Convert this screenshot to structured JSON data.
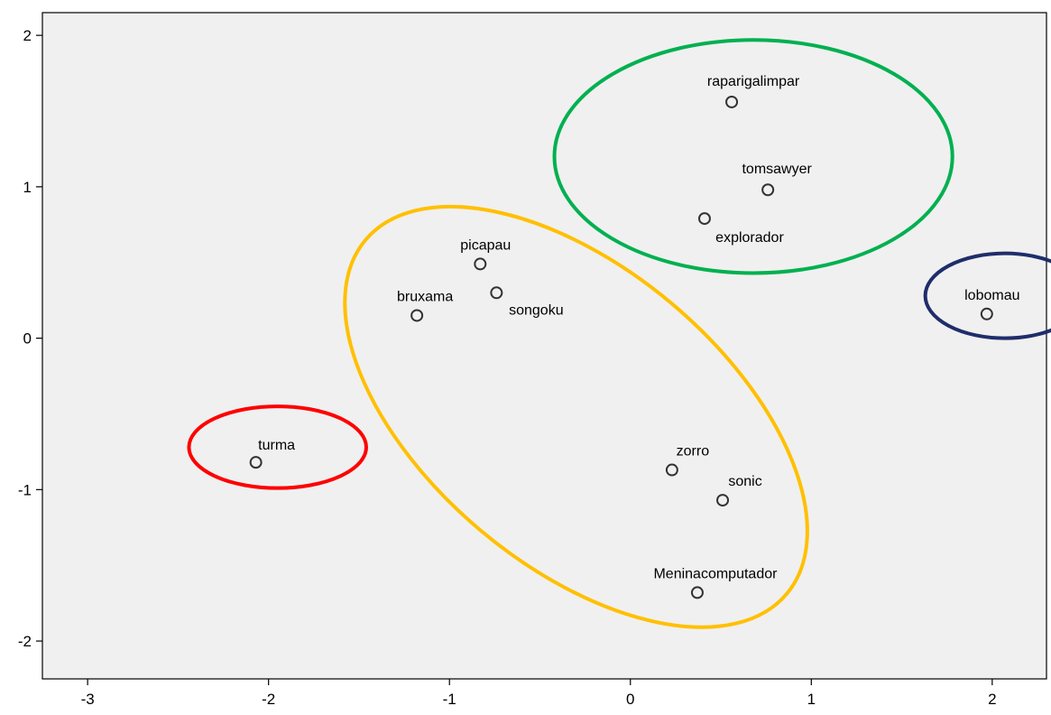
{
  "chart_data": {
    "type": "scatter",
    "title": "",
    "xlabel": "",
    "ylabel": "",
    "xlim": [
      -3.25,
      2.3
    ],
    "ylim": [
      -2.25,
      2.15
    ],
    "xticks": [
      -3,
      -2,
      -1,
      0,
      1,
      2
    ],
    "yticks": [
      -2,
      -1,
      0,
      1,
      2
    ],
    "grid": false,
    "plot_background": "#f0f0f0",
    "points": [
      {
        "label": "raparigalimpar",
        "x": 0.56,
        "y": 1.56
      },
      {
        "label": "tomsawyer",
        "x": 0.76,
        "y": 0.98
      },
      {
        "label": "explorador",
        "x": 0.41,
        "y": 0.79
      },
      {
        "label": "picapau",
        "x": -0.83,
        "y": 0.49
      },
      {
        "label": "songoku",
        "x": -0.74,
        "y": 0.3
      },
      {
        "label": "bruxama",
        "x": -1.18,
        "y": 0.15
      },
      {
        "label": "lobomau",
        "x": 1.97,
        "y": 0.16
      },
      {
        "label": "turma",
        "x": -2.07,
        "y": -0.82
      },
      {
        "label": "zorro",
        "x": 0.23,
        "y": -0.87
      },
      {
        "label": "sonic",
        "x": 0.51,
        "y": -1.07
      },
      {
        "label": "Meninacomputador",
        "x": 0.37,
        "y": -1.68
      }
    ],
    "annotations": [
      {
        "shape": "ellipse",
        "color": "#00b050",
        "cx": 0.68,
        "cy": 1.2,
        "rx": 1.1,
        "ry": 0.77
      },
      {
        "shape": "ellipse",
        "color": "#1f2d6b",
        "cx": 2.07,
        "cy": 0.28,
        "rx": 0.44,
        "ry": 0.28
      },
      {
        "shape": "ellipse",
        "color": "#ff0000",
        "cx": -1.95,
        "cy": -0.72,
        "rx": 0.49,
        "ry": 0.27
      },
      {
        "shape": "ellipse",
        "color": "#ffc000",
        "cx": -0.3,
        "cy": -0.52,
        "rx": 1.52,
        "ry": 0.98,
        "rotation_deg": 40
      }
    ]
  }
}
